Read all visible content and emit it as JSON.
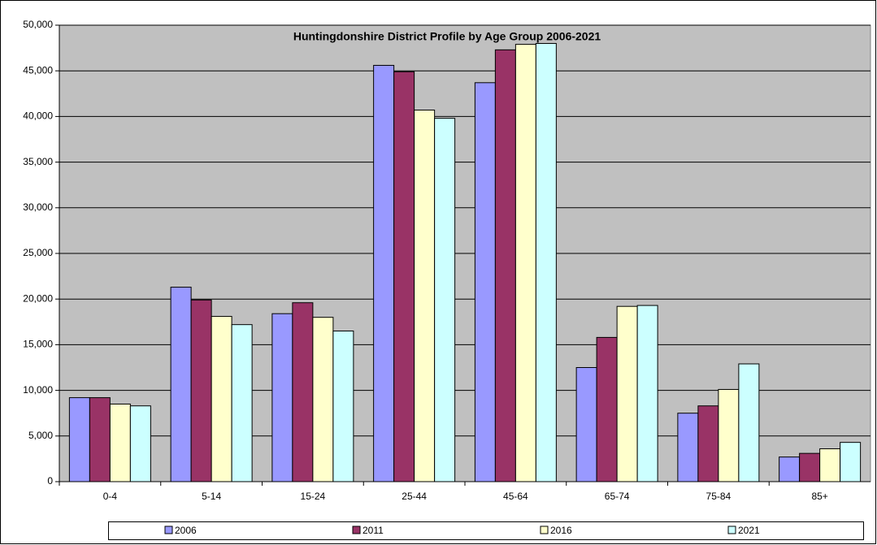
{
  "chart_data": {
    "type": "bar",
    "title": "Huntingdonshire District Profile by Age Group 2006-2021",
    "categories": [
      "0-4",
      "5-14",
      "15-24",
      "25-44",
      "45-64",
      "65-74",
      "75-84",
      "85+"
    ],
    "series": [
      {
        "name": "2006",
        "color": "#9999ff",
        "values": [
          9200,
          21300,
          18400,
          45600,
          43700,
          12500,
          7500,
          2700
        ]
      },
      {
        "name": "2011",
        "color": "#993366",
        "values": [
          9200,
          19900,
          19600,
          44900,
          47300,
          15800,
          8300,
          3100
        ]
      },
      {
        "name": "2016",
        "color": "#ffffcc",
        "values": [
          8500,
          18100,
          18000,
          40700,
          47900,
          19200,
          10100,
          3600
        ]
      },
      {
        "name": "2021",
        "color": "#ccffff",
        "values": [
          8300,
          17200,
          16500,
          39800,
          48000,
          19300,
          12900,
          4300
        ]
      }
    ],
    "ylim": [
      0,
      50000
    ],
    "yticks": [
      0,
      {
        "value": 5000,
        "label": "5,000"
      },
      {
        "value": 10000,
        "label": "10,000"
      },
      {
        "value": 15000,
        "label": "15,000"
      },
      {
        "value": 20000,
        "label": "20,000"
      },
      {
        "value": 25000,
        "label": "25,000"
      },
      {
        "value": 30000,
        "label": "30,000"
      },
      {
        "value": 35000,
        "label": "35,000"
      },
      {
        "value": 40000,
        "label": "40,000"
      },
      {
        "value": 45000,
        "label": "45,000"
      },
      {
        "value": 50000,
        "label": "50,000"
      }
    ],
    "grid": true,
    "legend": "bottom"
  }
}
